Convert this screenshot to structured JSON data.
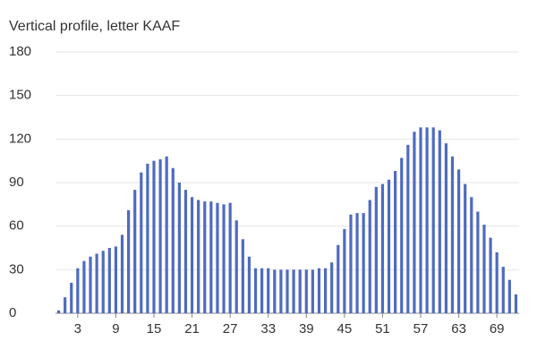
{
  "chart_data": {
    "type": "bar",
    "title": "Vertical profile, letter KAAF",
    "categories": [
      null,
      null,
      null,
      "3",
      null,
      null,
      null,
      null,
      null,
      "9",
      null,
      null,
      null,
      null,
      null,
      "15",
      null,
      null,
      null,
      null,
      null,
      "21",
      null,
      null,
      null,
      null,
      null,
      "27",
      null,
      null,
      null,
      null,
      null,
      "33",
      null,
      null,
      null,
      null,
      null,
      "39",
      null,
      null,
      null,
      null,
      null,
      "45",
      null,
      null,
      null,
      null,
      null,
      "51",
      null,
      null,
      null,
      null,
      null,
      "57",
      null,
      null,
      null,
      null,
      null,
      "63",
      null,
      null,
      null,
      null,
      null,
      "69",
      null,
      null,
      null
    ],
    "values": [
      2,
      11,
      21,
      31,
      36,
      39,
      41,
      43,
      45,
      46,
      54,
      71,
      85,
      97,
      103,
      105,
      106,
      108,
      100,
      90,
      85,
      80,
      78,
      77,
      77,
      76,
      75,
      76,
      64,
      51,
      39,
      31,
      31,
      31,
      30,
      30,
      30,
      30,
      30,
      30,
      30,
      31,
      31,
      35,
      47,
      58,
      68,
      69,
      69,
      78,
      87,
      89,
      92,
      98,
      107,
      116,
      125,
      128,
      128,
      128,
      126,
      117,
      108,
      99,
      89,
      80,
      70,
      61,
      52,
      42,
      32,
      23,
      13
    ],
    "color": "#4f6bbf",
    "ylim": [
      0,
      180
    ],
    "yticks": [
      0,
      30,
      60,
      90,
      120,
      150,
      180
    ],
    "grid": true
  }
}
